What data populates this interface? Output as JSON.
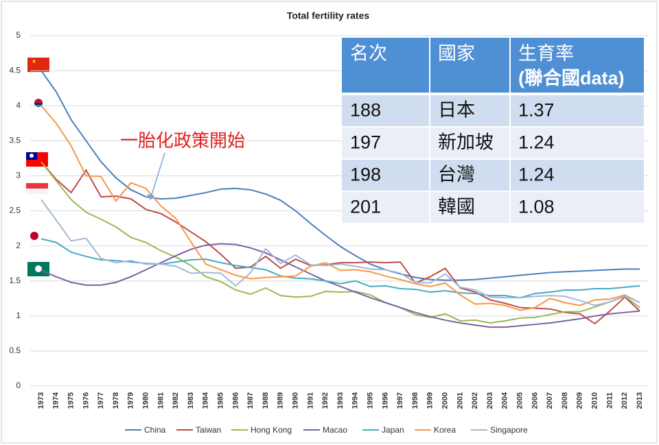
{
  "chart_data": {
    "type": "line",
    "title": "Total fertility rates",
    "categories": [
      "1973",
      "1974",
      "1975",
      "1976",
      "1977",
      "1978",
      "1979",
      "1980",
      "1981",
      "1982",
      "1983",
      "1984",
      "1985",
      "1986",
      "1987",
      "1988",
      "1989",
      "1990",
      "1991",
      "1992",
      "1993",
      "1994",
      "1995",
      "1996",
      "1997",
      "1998",
      "1999",
      "2000",
      "2001",
      "2002",
      "2003",
      "2004",
      "2005",
      "2006",
      "2007",
      "2008",
      "2009",
      "2010",
      "2011",
      "2012",
      "2013"
    ],
    "series": [
      {
        "name": "China",
        "color": "#4a7ebb",
        "values": [
          4.5,
          4.2,
          3.8,
          3.5,
          3.2,
          2.97,
          2.8,
          2.7,
          2.67,
          2.68,
          2.72,
          2.76,
          2.81,
          2.82,
          2.8,
          2.74,
          2.65,
          2.5,
          2.32,
          2.15,
          1.99,
          1.86,
          1.74,
          1.66,
          1.6,
          1.55,
          1.52,
          1.51,
          1.51,
          1.52,
          1.54,
          1.56,
          1.58,
          1.6,
          1.62,
          1.63,
          1.64,
          1.65,
          1.66,
          1.67,
          1.67
        ]
      },
      {
        "name": "Taiwan",
        "color": "#be4b48",
        "values": [
          3.2,
          2.95,
          2.76,
          3.08,
          2.7,
          2.71,
          2.67,
          2.52,
          2.46,
          2.34,
          2.2,
          2.06,
          1.88,
          1.68,
          1.7,
          1.85,
          1.68,
          1.81,
          1.72,
          1.73,
          1.76,
          1.76,
          1.77,
          1.76,
          1.77,
          1.47,
          1.56,
          1.68,
          1.4,
          1.34,
          1.23,
          1.18,
          1.12,
          1.11,
          1.1,
          1.05,
          1.03,
          0.89,
          1.07,
          1.27,
          1.07
        ]
      },
      {
        "name": "Hong Kong",
        "color": "#98b954",
        "values": [
          3.2,
          2.93,
          2.66,
          2.48,
          2.38,
          2.27,
          2.12,
          2.05,
          1.93,
          1.84,
          1.72,
          1.56,
          1.49,
          1.37,
          1.31,
          1.4,
          1.29,
          1.27,
          1.28,
          1.35,
          1.34,
          1.35,
          1.3,
          1.19,
          1.12,
          1.02,
          0.98,
          1.03,
          0.93,
          0.94,
          0.9,
          0.93,
          0.97,
          0.98,
          1.02,
          1.06,
          1.06,
          1.13,
          1.2,
          1.28,
          1.12
        ]
      },
      {
        "name": "Macao",
        "color": "#7d60a0",
        "values": [
          1.65,
          1.56,
          1.48,
          1.44,
          1.44,
          1.48,
          1.56,
          1.66,
          1.76,
          1.86,
          1.95,
          2.01,
          2.03,
          2.02,
          1.97,
          1.9,
          1.8,
          1.7,
          1.6,
          1.5,
          1.42,
          1.34,
          1.26,
          1.19,
          1.12,
          1.05,
          0.99,
          0.94,
          0.9,
          0.87,
          0.84,
          0.84,
          0.86,
          0.88,
          0.9,
          0.93,
          0.96,
          1.0,
          1.03,
          1.05,
          1.07
        ]
      },
      {
        "name": "Japan",
        "color": "#46aac5",
        "values": [
          2.1,
          2.05,
          1.91,
          1.85,
          1.8,
          1.79,
          1.77,
          1.75,
          1.74,
          1.77,
          1.8,
          1.81,
          1.76,
          1.72,
          1.69,
          1.66,
          1.57,
          1.54,
          1.53,
          1.5,
          1.46,
          1.5,
          1.42,
          1.43,
          1.39,
          1.38,
          1.34,
          1.36,
          1.33,
          1.32,
          1.29,
          1.29,
          1.26,
          1.32,
          1.34,
          1.37,
          1.37,
          1.39,
          1.39,
          1.41,
          1.43
        ]
      },
      {
        "name": "Korea",
        "color": "#f79646",
        "values": [
          4.0,
          3.75,
          3.43,
          3.0,
          2.99,
          2.64,
          2.9,
          2.82,
          2.57,
          2.39,
          2.06,
          1.74,
          1.66,
          1.58,
          1.53,
          1.55,
          1.56,
          1.57,
          1.71,
          1.76,
          1.65,
          1.66,
          1.63,
          1.57,
          1.52,
          1.46,
          1.42,
          1.47,
          1.3,
          1.17,
          1.18,
          1.15,
          1.08,
          1.12,
          1.25,
          1.19,
          1.15,
          1.23,
          1.24,
          1.3,
          1.19
        ]
      },
      {
        "name": "Singapore",
        "color": "#a5b6d8",
        "values": [
          2.66,
          2.37,
          2.07,
          2.11,
          1.82,
          1.76,
          1.79,
          1.74,
          1.74,
          1.71,
          1.61,
          1.62,
          1.61,
          1.43,
          1.62,
          1.96,
          1.75,
          1.87,
          1.73,
          1.72,
          1.74,
          1.71,
          1.67,
          1.66,
          1.61,
          1.48,
          1.47,
          1.6,
          1.41,
          1.37,
          1.27,
          1.26,
          1.26,
          1.28,
          1.29,
          1.28,
          1.22,
          1.15,
          1.2,
          1.29,
          1.19
        ]
      }
    ],
    "ylim": [
      0,
      5
    ],
    "yticks": [
      0,
      0.5,
      1,
      1.5,
      2,
      2.5,
      3,
      3.5,
      4,
      4.5,
      5
    ],
    "grid": true,
    "legend": "bottom",
    "annotation": "一胎化政策開始"
  },
  "table": {
    "header": [
      "名次",
      "國家",
      [
        "生育率",
        "(聯合國data)"
      ]
    ],
    "rows": [
      [
        "188",
        "日本",
        "1.37"
      ],
      [
        "197",
        "新加坡",
        "1.24"
      ],
      [
        "198",
        "台灣",
        "1.24"
      ],
      [
        "201",
        "韓國",
        "1.08"
      ]
    ]
  }
}
